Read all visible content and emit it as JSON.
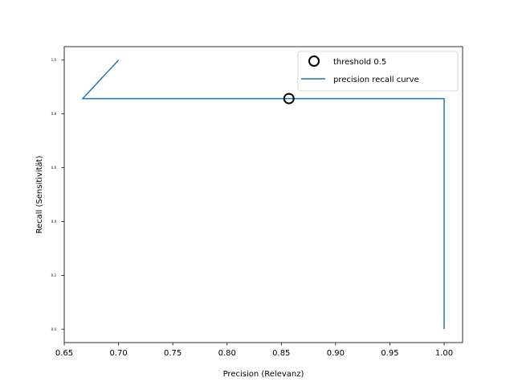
{
  "chart_data": {
    "type": "line",
    "xlabel": "Precision (Relevanz)",
    "ylabel": "Recall (Sensitivität)",
    "xlim": [
      0.65,
      1.017
    ],
    "ylim": [
      -0.05,
      1.05
    ],
    "x_ticks": [
      "0.65",
      "0.70",
      "0.75",
      "0.80",
      "0.85",
      "0.90",
      "0.95",
      "1.00"
    ],
    "y_ticks": [
      "0.0",
      "0.2",
      "0.4",
      "0.6",
      "0.8",
      "1.0"
    ],
    "grid": false,
    "legend_position": "top-right",
    "series": [
      {
        "name": "precision recall curve",
        "color": "#1f77b4",
        "points": [
          [
            0.7,
            1.0
          ],
          [
            0.667,
            0.857
          ],
          [
            1.0,
            0.857
          ],
          [
            1.0,
            0.0
          ]
        ]
      }
    ],
    "markers": [
      {
        "name": "threshold 0.5",
        "x": 0.857,
        "y": 0.857,
        "style": "open-circle",
        "color": "#000000"
      }
    ]
  }
}
